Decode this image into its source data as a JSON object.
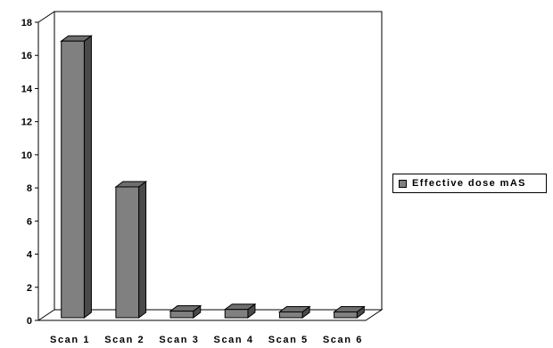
{
  "chart_data": {
    "type": "bar",
    "categories": [
      "Scan 1",
      "Scan 2",
      "Scan 3",
      "Scan 4",
      "Scan 5",
      "Scan 6"
    ],
    "series": [
      {
        "name": "Effective dose mAS",
        "values": [
          16.7,
          7.9,
          0.4,
          0.5,
          0.35,
          0.35
        ]
      }
    ],
    "y_ticks": [
      "0",
      "2",
      "4",
      "6",
      "8",
      "10",
      "12",
      "14",
      "16",
      "18"
    ],
    "ylim": [
      0,
      18
    ],
    "grid": false,
    "three_d": true,
    "legend_position": "right",
    "colors": {
      "bar_front": "#808080",
      "bar_top": "#6e6e6e",
      "bar_side": "#4a4a4a",
      "axis": "#000000"
    }
  }
}
